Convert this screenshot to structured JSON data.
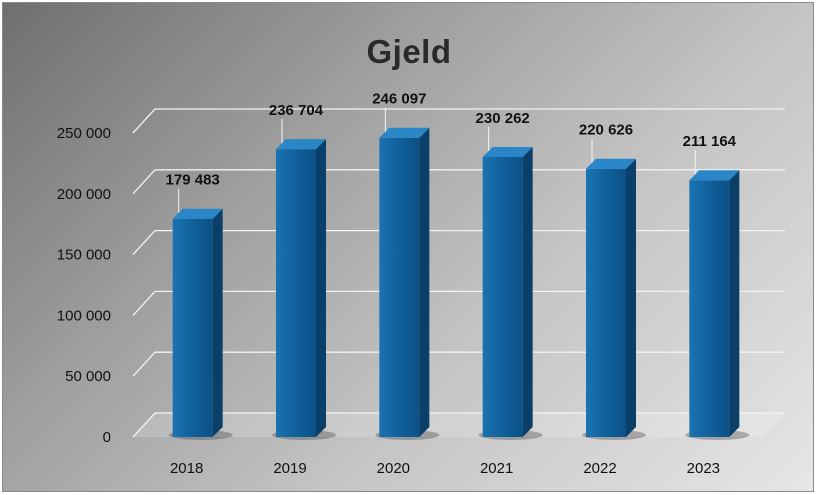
{
  "chart_data": {
    "type": "bar",
    "title": "Gjeld",
    "categories": [
      "2018",
      "2019",
      "2020",
      "2021",
      "2022",
      "2023"
    ],
    "values": [
      179483,
      236704,
      246097,
      230262,
      220626,
      211164
    ],
    "data_labels": [
      "179 483",
      "236 704",
      "246 097",
      "230 262",
      "220 626",
      "211 164"
    ],
    "y_ticks": [
      "0",
      "50 000",
      "100 000",
      "150 000",
      "200 000",
      "250 000"
    ],
    "ylim": [
      0,
      250000
    ],
    "grid": true,
    "legend": false,
    "bar_color": "#0f5f9a"
  }
}
